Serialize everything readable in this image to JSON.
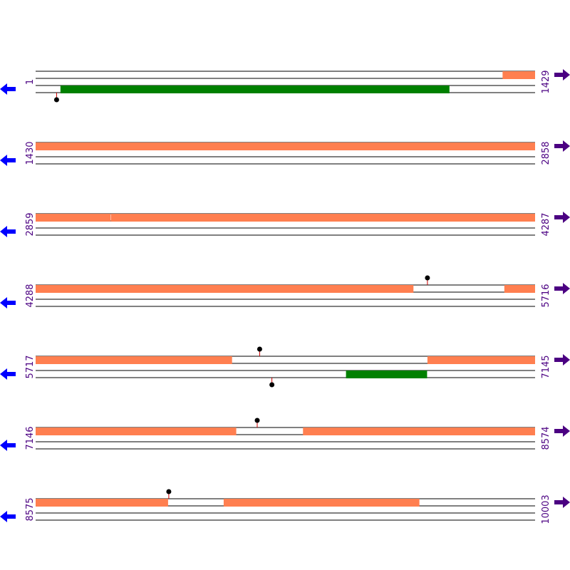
{
  "colors": {
    "orf": "#ff7f50",
    "gene": "#008000",
    "frame_line": "#000000",
    "marker_stem": "#cc0000",
    "marker_head": "#000000",
    "left_arrow": "#0000ff",
    "right_arrow": "#4b0082",
    "number_text": "#4b0082"
  },
  "icons": {
    "left": "arrow-left-icon",
    "right": "arrow-right-icon"
  },
  "sequence": {
    "bases_per_row": 1429,
    "frames_per_row": 3,
    "rows": [
      {
        "start_label": "1",
        "end_label": "1429",
        "start": 1,
        "end": 1429,
        "features": [
          {
            "frame": 0,
            "type": "orf",
            "from": 1337,
            "to": 1429
          },
          {
            "frame": 2,
            "type": "gene",
            "from": 72,
            "to": 1184
          }
        ],
        "markers": [
          {
            "frame": 2,
            "pos": 61,
            "dir": "down"
          }
        ]
      },
      {
        "start_label": "1430",
        "end_label": "2858",
        "start": 1430,
        "end": 2858,
        "features": [
          {
            "frame": 0,
            "type": "orf",
            "from": 1430,
            "to": 2858
          }
        ],
        "markers": []
      },
      {
        "start_label": "2859",
        "end_label": "4287",
        "start": 2859,
        "end": 4287,
        "features": [
          {
            "frame": 0,
            "type": "orf",
            "from": 2859,
            "to": 3073
          },
          {
            "frame": 0,
            "type": "orf",
            "from": 3075,
            "to": 4287
          }
        ],
        "markers": []
      },
      {
        "start_label": "4288",
        "end_label": "5716",
        "start": 4288,
        "end": 5716,
        "features": [
          {
            "frame": 0,
            "type": "orf",
            "from": 4288,
            "to": 5368
          },
          {
            "frame": 0,
            "type": "orf",
            "from": 5629,
            "to": 5716
          }
        ],
        "markers": [
          {
            "frame": 0,
            "pos": 5409,
            "dir": "up"
          }
        ]
      },
      {
        "start_label": "5717",
        "end_label": "7145",
        "start": 5717,
        "end": 7145,
        "features": [
          {
            "frame": 0,
            "type": "orf",
            "from": 5717,
            "to": 6278
          },
          {
            "frame": 0,
            "type": "orf",
            "from": 6838,
            "to": 7145
          },
          {
            "frame": 2,
            "type": "gene",
            "from": 6605,
            "to": 6836
          }
        ],
        "markers": [
          {
            "frame": 0,
            "pos": 6358,
            "dir": "up"
          },
          {
            "frame": 2,
            "pos": 6393,
            "dir": "down"
          }
        ]
      },
      {
        "start_label": "7146",
        "end_label": "8574",
        "start": 7146,
        "end": 8574,
        "features": [
          {
            "frame": 0,
            "type": "orf",
            "from": 7146,
            "to": 7719
          },
          {
            "frame": 0,
            "type": "orf",
            "from": 7911,
            "to": 8574
          }
        ],
        "markers": [
          {
            "frame": 0,
            "pos": 7780,
            "dir": "up"
          }
        ]
      },
      {
        "start_label": "8575",
        "end_label": "10003",
        "start": 8575,
        "end": 10003,
        "features": [
          {
            "frame": 0,
            "type": "orf",
            "from": 8575,
            "to": 8953
          },
          {
            "frame": 0,
            "type": "orf",
            "from": 9113,
            "to": 9672
          }
        ],
        "markers": [
          {
            "frame": 0,
            "pos": 8956,
            "dir": "up"
          }
        ]
      }
    ]
  }
}
